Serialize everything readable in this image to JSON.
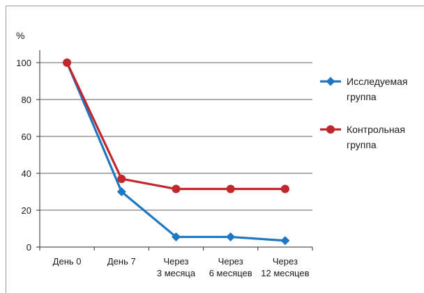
{
  "chart_data": {
    "type": "line",
    "ylabel": "%",
    "categories": [
      "День 0",
      "День 7",
      "Через\n3 месяца",
      "Через\n6 месяцев",
      "Через\n12 месяцев"
    ],
    "ylim": [
      0,
      100
    ],
    "yticks": [
      0,
      20,
      40,
      60,
      80,
      100
    ],
    "grid": true,
    "legend_position": "right",
    "series": [
      {
        "name": "Исследуемая группа",
        "color": "#1f77c4",
        "marker": "diamond",
        "values": [
          100,
          30,
          5.5,
          5.5,
          3.5
        ]
      },
      {
        "name": "Контрольная группа",
        "color": "#c1272d",
        "marker": "circle",
        "values": [
          100,
          37,
          31.5,
          31.5,
          31.5
        ]
      }
    ]
  }
}
